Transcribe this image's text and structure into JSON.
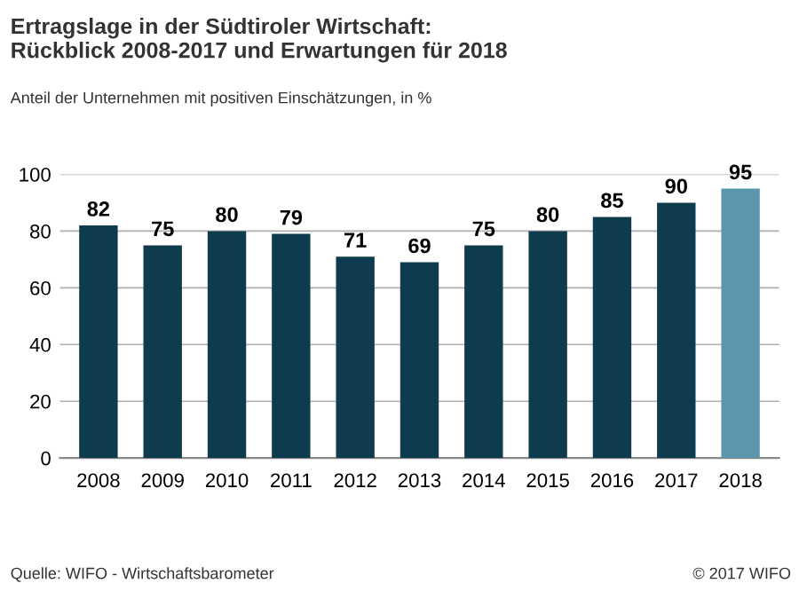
{
  "chart_data": {
    "type": "bar",
    "title": "Ertragslage in der Südtiroler Wirtschaft:\nRückblick 2008-2017 und Erwartungen für 2018",
    "subtitle": "Anteil der Unternehmen mit positiven Einschätzungen, in %",
    "categories": [
      "2008",
      "2009",
      "2010",
      "2011",
      "2012",
      "2013",
      "2014",
      "2015",
      "2016",
      "2017",
      "2018"
    ],
    "values": [
      82,
      75,
      80,
      79,
      71,
      69,
      75,
      80,
      85,
      90,
      95
    ],
    "colors": [
      "#0e3c4e",
      "#0e3c4e",
      "#0e3c4e",
      "#0e3c4e",
      "#0e3c4e",
      "#0e3c4e",
      "#0e3c4e",
      "#0e3c4e",
      "#0e3c4e",
      "#0e3c4e",
      "#5a97ad"
    ],
    "ylim": [
      0,
      100
    ],
    "yticks": [
      0,
      20,
      40,
      60,
      80,
      100
    ],
    "grid": "y",
    "data_labels": true,
    "annotations": [
      "Quelle: WIFO - Wirtschaftsbarometer",
      "© 2017 WIFO"
    ]
  }
}
